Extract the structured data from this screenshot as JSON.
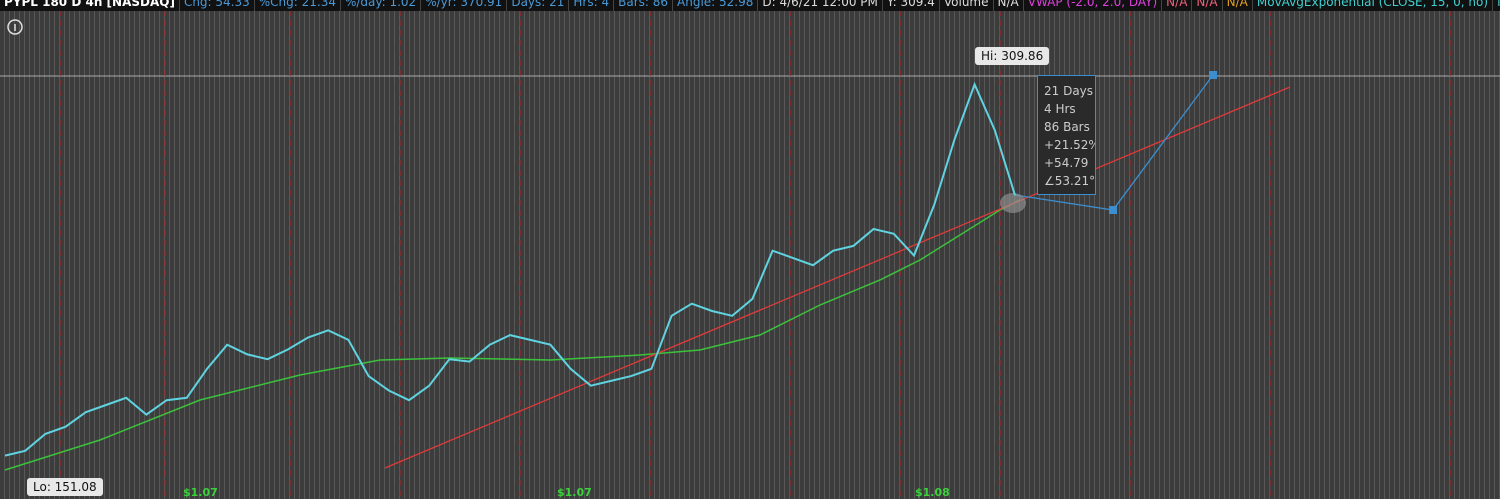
{
  "header": {
    "items": [
      "PYPL 180 D 4h [NASDAQ]",
      "Chg: 54.33",
      "%Chg: 21.34",
      "%/day: 1.02",
      "%/yr: 370.91",
      "Days: 21",
      "Hrs: 4",
      "Bars: 86",
      "Angle: 52.98",
      "D: 4/6/21 12:00 PM",
      "Y: 309.4",
      "Volume",
      "N/A",
      "VWAP (-2.0, 2.0, DAY)",
      "N/A",
      "N/A",
      "N/A",
      "MovAvgExponential (CLOSE, 15, 0, no)",
      "N/A",
      "..."
    ]
  },
  "annotations": {
    "hi": "Hi: 309.86",
    "lo": "Lo: 151.08",
    "info": [
      "21 Days",
      "4 Hrs",
      "86 Bars",
      "+21.52%",
      "+54.79",
      "∠53.21°"
    ],
    "bottom": [
      "$1.07",
      "$1.07",
      "$1.08"
    ]
  },
  "chart_data": {
    "type": "line",
    "color": "#5fd3e0",
    "ylim": [
      135,
      342
    ],
    "values": [
      153,
      155,
      162,
      165,
      171,
      174,
      177,
      170,
      176,
      177,
      189,
      199,
      195,
      193,
      197,
      202,
      205,
      201,
      186,
      180,
      176,
      182,
      193,
      192,
      199,
      203,
      201,
      199,
      189,
      182,
      184,
      186,
      189,
      211,
      216,
      213,
      211,
      218,
      238,
      235,
      232,
      238,
      240,
      247,
      245,
      236,
      257,
      284,
      307,
      288,
      261
    ]
  }
}
